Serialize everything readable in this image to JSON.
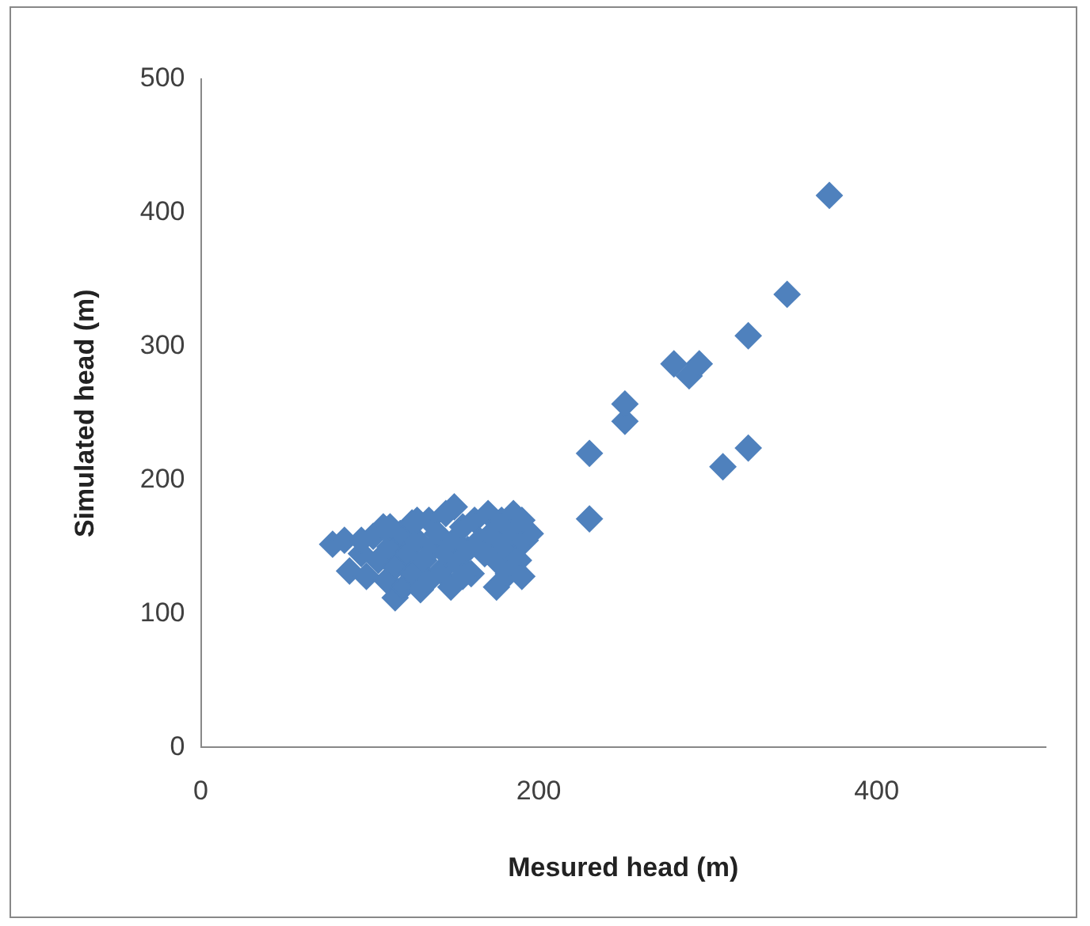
{
  "chart_data": {
    "type": "scatter",
    "xlabel": "Mesured head (m)",
    "ylabel": "Simulated head (m)",
    "marker": "diamond",
    "grid": false,
    "legend": false,
    "xlim": [
      0,
      500
    ],
    "xticks": [
      0,
      200,
      400
    ],
    "ylim": [
      0,
      500
    ],
    "yticks": [
      0,
      100,
      200,
      300,
      400,
      500
    ],
    "series": [
      {
        "color": "#4f81bd",
        "x": [
          78,
          85,
          88,
          95,
          98,
          102,
          105,
          108,
          110,
          112,
          115,
          115,
          118,
          120,
          122,
          125,
          125,
          128,
          130,
          132,
          135,
          135,
          138,
          140,
          142,
          145,
          145,
          148,
          150,
          150,
          152,
          155,
          158,
          160,
          162,
          165,
          168,
          170,
          172,
          175,
          175,
          178,
          180,
          182,
          185,
          185,
          188,
          190,
          192,
          195,
          112,
          128,
          155,
          190,
          95,
          230,
          230,
          251,
          251,
          280,
          289,
          295,
          309,
          324,
          324,
          347,
          372
        ],
        "values": [
          152,
          155,
          132,
          145,
          128,
          158,
          140,
          165,
          125,
          150,
          135,
          112,
          160,
          120,
          145,
          168,
          130,
          155,
          118,
          140,
          170,
          125,
          150,
          160,
          132,
          175,
          145,
          120,
          180,
          155,
          138,
          165,
          148,
          130,
          170,
          155,
          145,
          175,
          160,
          120,
          140,
          170,
          150,
          130,
          175,
          160,
          140,
          128,
          155,
          160,
          165,
          170,
          128,
          170,
          155,
          171,
          220,
          244,
          257,
          287,
          278,
          287,
          210,
          224,
          308,
          339,
          413
        ]
      }
    ]
  }
}
